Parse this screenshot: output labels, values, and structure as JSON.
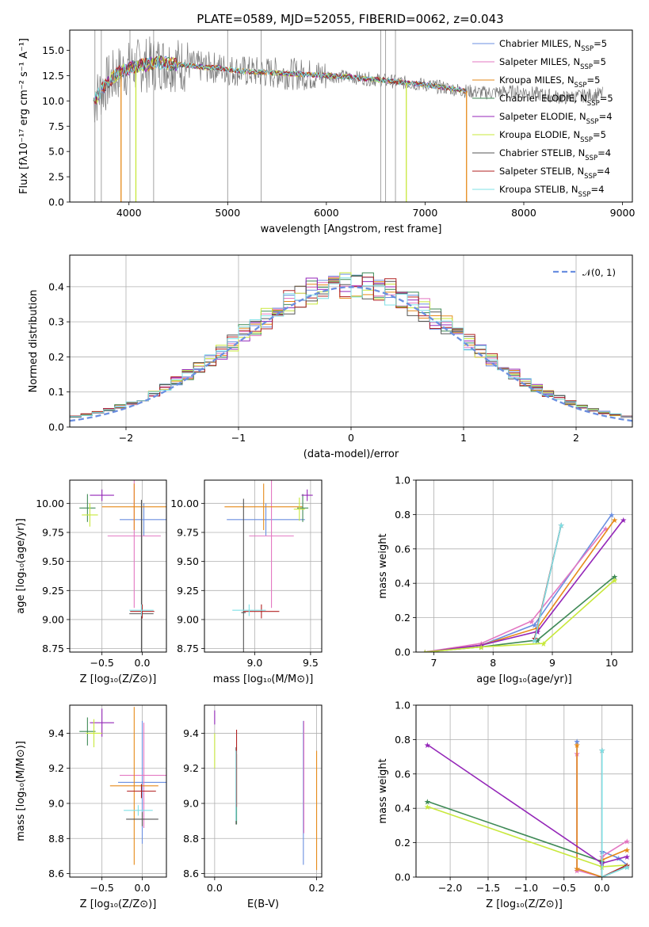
{
  "title": "PLATE=0589, MJD=52055, FIBERID=0062, z=0.043",
  "palette": [
    "#6b8fe0",
    "#e377c2",
    "#e68a1a",
    "#3f8a56",
    "#9426b8",
    "#c8e83b",
    "#555555",
    "#b22222",
    "#7fe0e6"
  ],
  "chart_data": [
    {
      "id": "spectrum",
      "type": "line",
      "xlabel": "wavelength [Angstrom, rest frame]",
      "ylabel": "Flux [fλ10⁻¹⁷ erg cm⁻² s⁻¹ A⁻¹]",
      "xlim": [
        3400,
        9100
      ],
      "ylim": [
        0,
        17
      ],
      "xticks": [
        4000,
        5000,
        6000,
        7000,
        8000,
        9000
      ],
      "yticks": [
        0.0,
        2.5,
        5.0,
        7.5,
        10.0,
        12.5,
        15.0
      ],
      "grid": false,
      "legend_position": "top-right",
      "series": [
        {
          "name": "Chabrier MILES, N_SSP=5"
        },
        {
          "name": "Salpeter MILES, N_SSP=5"
        },
        {
          "name": "Kroupa MILES, N_SSP=5"
        },
        {
          "name": "Chabrier ELODIE, N_SSP=5"
        },
        {
          "name": "Salpeter ELODIE, N_SSP=4"
        },
        {
          "name": "Kroupa ELODIE, N_SSP=5"
        },
        {
          "name": "Chabrier STELIB, N_SSP=4"
        },
        {
          "name": "Salpeter STELIB, N_SSP=4"
        },
        {
          "name": "Kroupa STELIB, N_SSP=4"
        }
      ],
      "data_continuum": {
        "x": [
          3650,
          3700,
          3800,
          3900,
          4000,
          4100,
          4200,
          4300,
          4400,
          4500,
          4600,
          4700,
          4800,
          4900,
          5000,
          5200,
          5400,
          5600,
          5800,
          6000,
          6200,
          6400,
          6600,
          6800,
          7000,
          7200,
          7400,
          7600,
          7800,
          8000,
          8200,
          8400,
          8600,
          8800
        ],
        "y": [
          10.0,
          10.8,
          12.0,
          12.8,
          13.2,
          13.5,
          13.6,
          13.8,
          13.7,
          13.6,
          13.5,
          13.4,
          13.3,
          13.3,
          13.1,
          12.9,
          12.8,
          12.7,
          12.6,
          12.5,
          12.4,
          12.2,
          12.0,
          11.8,
          11.6,
          11.3,
          11.0,
          10.8,
          10.9,
          10.9,
          10.6,
          10.3,
          10.5,
          10.7
        ]
      },
      "vertical_spikes_x": [
        3655,
        3720,
        4010,
        4250,
        5000,
        5340,
        6550,
        6600,
        6700
      ],
      "model_dropouts_x": [
        3920,
        4070,
        6810,
        7420
      ]
    },
    {
      "id": "residual-histogram",
      "type": "line",
      "xlabel": "(data-model)/error",
      "ylabel": "Normed distribution",
      "xlim": [
        -2.5,
        2.5
      ],
      "ylim": [
        0,
        0.49
      ],
      "xticks": [
        -2,
        -1,
        0,
        1,
        2
      ],
      "yticks": [
        0.0,
        0.1,
        0.2,
        0.3,
        0.4
      ],
      "grid": true,
      "legend_position": "top-right",
      "legend": [
        "𝒩(0, 1)"
      ],
      "gaussian": {
        "mean": 0,
        "sigma": 1
      }
    },
    {
      "id": "age-vs-metallicity",
      "type": "scatter",
      "xlabel": "Z [log₁₀(Z/Z⊙)]",
      "ylabel": "age  [log₁₀(age/yr)]",
      "xlim": [
        -0.9,
        0.3
      ],
      "ylim": [
        8.72,
        10.2
      ],
      "xticks": [
        -0.5,
        0.0
      ],
      "yticks": [
        8.75,
        9.0,
        9.25,
        9.5,
        9.75,
        10.0
      ],
      "grid": true,
      "points": [
        {
          "s": 0,
          "x": 0.02,
          "y": 9.86,
          "xerr": 0.3,
          "yerr": 0.14
        },
        {
          "s": 1,
          "x": -0.1,
          "y": 9.72,
          "xerr": 0.33,
          "yerr": 0.62
        },
        {
          "s": 2,
          "x": -0.1,
          "y": 9.97,
          "xerr": 0.4,
          "yerr": 0.2
        },
        {
          "s": 3,
          "x": -0.68,
          "y": 9.96,
          "xerr": 0.1,
          "yerr": 0.12
        },
        {
          "s": 4,
          "x": -0.5,
          "y": 10.07,
          "xerr": 0.15,
          "yerr": 0.05
        },
        {
          "s": 5,
          "x": -0.65,
          "y": 9.9,
          "xerr": 0.1,
          "yerr": 0.1
        },
        {
          "s": 6,
          "x": -0.01,
          "y": 9.05,
          "xerr": 0.15,
          "yerr": 0.98
        },
        {
          "s": 7,
          "x": 0.0,
          "y": 9.07,
          "xerr": 0.15,
          "yerr": 0.06
        },
        {
          "s": 8,
          "x": -0.01,
          "y": 9.08,
          "xerr": 0.15,
          "yerr": 0.05
        }
      ]
    },
    {
      "id": "age-vs-mass",
      "type": "scatter",
      "xlabel": "mass [log₁₀(M/M⊙)]",
      "ylabel": "",
      "xlim": [
        8.55,
        9.6
      ],
      "ylim": [
        8.72,
        10.2
      ],
      "xticks": [
        9.0,
        9.5
      ],
      "yticks": [
        8.75,
        9.0,
        9.25,
        9.5,
        9.75,
        10.0
      ],
      "grid": true,
      "points": [
        {
          "s": 0,
          "x": 9.1,
          "y": 9.86,
          "xerr": 0.35,
          "yerr": 0.14
        },
        {
          "s": 1,
          "x": 9.15,
          "y": 9.72,
          "xerr": 0.2,
          "yerr": 0.62
        },
        {
          "s": 2,
          "x": 9.08,
          "y": 9.97,
          "xerr": 0.35,
          "yerr": 0.2
        },
        {
          "s": 3,
          "x": 9.43,
          "y": 9.96,
          "xerr": 0.05,
          "yerr": 0.12
        },
        {
          "s": 4,
          "x": 9.47,
          "y": 10.07,
          "xerr": 0.05,
          "yerr": 0.05
        },
        {
          "s": 5,
          "x": 9.4,
          "y": 9.95,
          "xerr": 0.05,
          "yerr": 0.1
        },
        {
          "s": 6,
          "x": 8.9,
          "y": 9.06,
          "xerr": 0.02,
          "yerr": 0.98
        },
        {
          "s": 7,
          "x": 9.06,
          "y": 9.07,
          "xerr": 0.16,
          "yerr": 0.06
        },
        {
          "s": 8,
          "x": 8.95,
          "y": 9.08,
          "xerr": 0.15,
          "yerr": 0.05
        }
      ]
    },
    {
      "id": "mass-weight-vs-age",
      "type": "line",
      "xlabel": "age  [log₁₀(age/yr)]",
      "ylabel": "mass weight",
      "xlim": [
        6.7,
        10.35
      ],
      "ylim": [
        0,
        1.0
      ],
      "xticks": [
        7,
        8,
        9,
        10
      ],
      "yticks": [
        0.0,
        0.2,
        0.4,
        0.6,
        0.8,
        1.0
      ],
      "grid": true,
      "series": [
        {
          "s": 0,
          "x": [
            6.85,
            7.8,
            8.7,
            10.0
          ],
          "y": [
            0.0,
            0.04,
            0.16,
            0.8
          ]
        },
        {
          "s": 1,
          "x": [
            6.85,
            7.8,
            8.65,
            9.9
          ],
          "y": [
            0.0,
            0.05,
            0.18,
            0.72
          ]
        },
        {
          "s": 2,
          "x": [
            6.85,
            7.8,
            8.75,
            10.05
          ],
          "y": [
            0.0,
            0.04,
            0.14,
            0.77
          ]
        },
        {
          "s": 3,
          "x": [
            6.85,
            7.8,
            8.75,
            10.05
          ],
          "y": [
            0.0,
            0.03,
            0.07,
            0.44
          ]
        },
        {
          "s": 4,
          "x": [
            6.85,
            7.8,
            8.75,
            10.2
          ],
          "y": [
            0.0,
            0.04,
            0.12,
            0.77
          ]
        },
        {
          "s": 5,
          "x": [
            6.85,
            7.8,
            8.85,
            10.05
          ],
          "y": [
            0.0,
            0.03,
            0.05,
            0.42
          ]
        },
        {
          "s": 6,
          "x": [
            8.7,
            9.15
          ],
          "y": [
            0.07,
            0.74
          ]
        },
        {
          "s": 7,
          "x": [
            8.7,
            9.15
          ],
          "y": [
            0.08,
            0.74
          ]
        },
        {
          "s": 8,
          "x": [
            8.7,
            9.15
          ],
          "y": [
            0.07,
            0.74
          ]
        }
      ]
    },
    {
      "id": "mass-vs-metallicity",
      "type": "scatter",
      "xlabel": "Z [log₁₀(Z/Z⊙)]",
      "ylabel": "mass [log₁₀(M/M⊙)]",
      "xlim": [
        -0.9,
        0.3
      ],
      "ylim": [
        8.58,
        9.56
      ],
      "xticks": [
        -0.5,
        0.0
      ],
      "yticks": [
        8.6,
        8.8,
        9.0,
        9.2,
        9.4
      ],
      "grid": true,
      "points": [
        {
          "s": 0,
          "x": 0.0,
          "y": 9.12,
          "xerr": 0.3,
          "yerr": 0.35
        },
        {
          "s": 1,
          "x": 0.02,
          "y": 9.16,
          "xerr": 0.3,
          "yerr": 0.3
        },
        {
          "s": 2,
          "x": -0.1,
          "y": 9.1,
          "xerr": 0.3,
          "yerr": 0.45
        },
        {
          "s": 3,
          "x": -0.68,
          "y": 9.41,
          "xerr": 0.1,
          "yerr": 0.08
        },
        {
          "s": 4,
          "x": -0.5,
          "y": 9.46,
          "xerr": 0.15,
          "yerr": 0.08
        },
        {
          "s": 5,
          "x": -0.6,
          "y": 9.4,
          "xerr": 0.1,
          "yerr": 0.08
        },
        {
          "s": 6,
          "x": 0.0,
          "y": 8.91,
          "xerr": 0.2,
          "yerr": 0.04
        },
        {
          "s": 7,
          "x": -0.01,
          "y": 9.07,
          "xerr": 0.18,
          "yerr": 0.04
        },
        {
          "s": 8,
          "x": -0.05,
          "y": 8.96,
          "xerr": 0.18,
          "yerr": 0.03
        }
      ]
    },
    {
      "id": "mass-vs-ebv",
      "type": "scatter",
      "xlabel": "E(B-V)",
      "ylabel": "",
      "xlim": [
        -0.02,
        0.21
      ],
      "ylim": [
        8.58,
        9.56
      ],
      "xticks": [
        0.0,
        0.2
      ],
      "yticks": [
        8.6,
        8.8,
        9.0,
        9.2,
        9.4
      ],
      "grid": true,
      "points": [
        {
          "s": 0,
          "x": 0.174,
          "y": 9.06,
          "yerr": 0.41
        },
        {
          "s": 1,
          "x": 0.175,
          "y": 9.15,
          "yerr": 0.32
        },
        {
          "s": 2,
          "x": 0.2,
          "y": 8.96,
          "yerr": 0.34
        },
        {
          "s": 3,
          "x": 0.043,
          "y": 9.08,
          "yerr": 0.2
        },
        {
          "s": 4,
          "x": 0.0,
          "y": 9.49,
          "yerr": 0.04
        },
        {
          "s": 5,
          "x": 0.0,
          "y": 9.3,
          "yerr": 0.1
        },
        {
          "s": 6,
          "x": 0.042,
          "y": 9.1,
          "yerr": 0.22
        },
        {
          "s": 7,
          "x": 0.043,
          "y": 9.2,
          "yerr": 0.22
        },
        {
          "s": 8,
          "x": 0.042,
          "y": 9.1,
          "yerr": 0.2
        }
      ]
    },
    {
      "id": "mass-weight-vs-metallicity",
      "type": "line",
      "xlabel": "Z [log₁₀(Z/Z⊙)]",
      "ylabel": "mass weight",
      "xlim": [
        -2.45,
        0.4
      ],
      "ylim": [
        0,
        1.0
      ],
      "xticks": [
        -2.0,
        -1.5,
        -1.0,
        -0.5,
        0.0
      ],
      "yticks": [
        0.0,
        0.2,
        0.4,
        0.6,
        0.8,
        1.0
      ],
      "grid": true,
      "series": [
        {
          "s": 0,
          "x": [
            -0.33,
            -0.33,
            0.0,
            0.0,
            0.22,
            0.33
          ],
          "y": [
            0.79,
            0.05,
            0.0,
            0.15,
            0.11,
            0.07
          ]
        },
        {
          "s": 1,
          "x": [
            -0.33,
            -0.33,
            0.0,
            0.0,
            0.33
          ],
          "y": [
            0.72,
            0.04,
            0.0,
            0.12,
            0.21
          ]
        },
        {
          "s": 2,
          "x": [
            -0.33,
            -0.33,
            0.0,
            0.0,
            0.33
          ],
          "y": [
            0.77,
            0.05,
            0.0,
            0.1,
            0.16
          ]
        },
        {
          "s": 3,
          "x": [
            -2.3,
            0.0,
            0.0,
            0.33
          ],
          "y": [
            0.44,
            0.09,
            0.0,
            0.06
          ]
        },
        {
          "s": 4,
          "x": [
            -2.3,
            0.0,
            0.33
          ],
          "y": [
            0.77,
            0.08,
            0.12
          ]
        },
        {
          "s": 5,
          "x": [
            -2.3,
            0.0,
            0.33
          ],
          "y": [
            0.41,
            0.06,
            0.07
          ]
        },
        {
          "s": 6,
          "x": [
            0.0,
            0.0,
            0.33
          ],
          "y": [
            0.74,
            0.0,
            0.07
          ]
        },
        {
          "s": 7,
          "x": [
            0.0,
            0.0,
            0.33
          ],
          "y": [
            0.74,
            0.0,
            0.07
          ]
        },
        {
          "s": 8,
          "x": [
            0.0,
            0.0,
            0.33
          ],
          "y": [
            0.74,
            0.0,
            0.06
          ]
        }
      ]
    }
  ]
}
